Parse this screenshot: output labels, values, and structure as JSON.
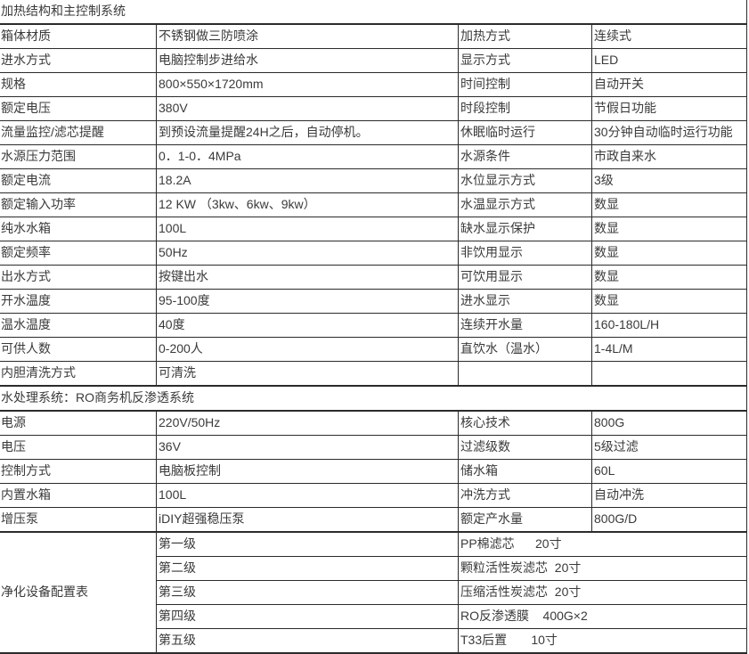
{
  "colors": {
    "text": "#3a3a3a",
    "border": "#2b2b2b",
    "background": "#ffffff"
  },
  "table": {
    "sections": [
      {
        "type": "titled",
        "title": "加热结构和主控制系统",
        "rows": [
          {
            "cells": [
              "箱体材质",
              "不锈钢做三防喷涂",
              "加热方式",
              "连续式"
            ]
          },
          {
            "cells": [
              "进水方式",
              "电脑控制步进给水",
              "显示方式",
              "LED"
            ]
          },
          {
            "cells": [
              "规格",
              "800×550×1720mm",
              "时间控制",
              "自动开关"
            ]
          },
          {
            "cells": [
              "额定电压",
              "380V",
              "时段控制",
              "节假日功能"
            ]
          },
          {
            "cells": [
              "流量监控/滤芯提醒",
              "到预设流量提醒24H之后，自动停机。",
              "休眠临时运行",
              "30分钟自动临时运行功能"
            ]
          },
          {
            "cells": [
              "水源压力范围",
              "0．1-0．4MPa",
              "水源条件",
              "市政自来水"
            ]
          },
          {
            "cells": [
              "额定电流",
              "18.2A",
              "水位显示方式",
              "3级"
            ]
          },
          {
            "cells": [
              "额定输入功率",
              "12 KW （3kw、6kw、9kw）",
              "水温显示方式",
              "数显"
            ]
          },
          {
            "cells": [
              "纯水水箱",
              "100L",
              "缺水显示保护",
              "数显"
            ]
          },
          {
            "cells": [
              "额定频率",
              "50Hz",
              "非饮用显示",
              "数显"
            ]
          },
          {
            "cells": [
              "出水方式",
              "按键出水",
              "可饮用显示",
              "数显"
            ]
          },
          {
            "cells": [
              "开水温度",
              "95-100度",
              "进水显示",
              "数显"
            ]
          },
          {
            "cells": [
              "温水温度",
              "40度",
              "连续开水量",
              "160-180L/H"
            ]
          },
          {
            "cells": [
              "可供人数",
              "0-200人",
              "直饮水（温水）",
              "1-4L/M"
            ]
          },
          {
            "cells": [
              "内胆清洗方式",
              "可清洗",
              "",
              ""
            ]
          }
        ]
      },
      {
        "type": "titled",
        "title": "水处理系统：RO商务机反渗透系统",
        "rows": [
          {
            "cells": [
              "电源",
              "220V/50Hz",
              "核心技术",
              "800G"
            ]
          },
          {
            "cells": [
              "电压",
              "36V",
              "过滤级数",
              "5级过滤"
            ]
          },
          {
            "cells": [
              "控制方式",
              "电脑板控制",
              "储水箱",
              "60L"
            ]
          },
          {
            "cells": [
              "内置水箱",
              "100L",
              "冲洗方式",
              "自动冲洗"
            ]
          },
          {
            "cells": [
              "增压泵",
              "iDIY超强稳压泵",
              "额定产水量",
              "800G/D"
            ]
          }
        ]
      },
      {
        "type": "merged-first-column",
        "merged_label": "净化设备配置表",
        "rows": [
          {
            "cells": [
              "第一级",
              "PP棉滤芯      20寸"
            ]
          },
          {
            "cells": [
              "第二级",
              "颗粒活性炭滤芯  20寸"
            ]
          },
          {
            "cells": [
              "第三级",
              "压缩活性炭滤芯  20寸"
            ]
          },
          {
            "cells": [
              "第四级",
              "RO反渗透膜    400G×2"
            ]
          },
          {
            "cells": [
              "第五级",
              "T33后置       10寸"
            ]
          }
        ]
      }
    ]
  }
}
